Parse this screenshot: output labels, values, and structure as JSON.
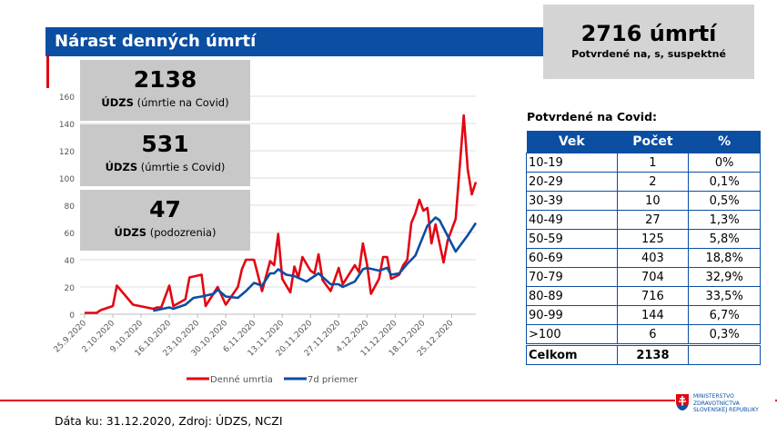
{
  "header": {
    "title": "Nárast denných úmrtí"
  },
  "total": {
    "value": "2716 úmrtí",
    "label": "Potvrdené na, s, suspektné"
  },
  "boxes": [
    {
      "value": "2138",
      "label_bold": "ÚDZS",
      "label": " (úmrtie na Covid)"
    },
    {
      "value": "531",
      "label_bold": "ÚDZS",
      "label": " (úmrtie s Covid)"
    },
    {
      "value": "47",
      "label_bold": "ÚDZS",
      "label": " (podozrenia)"
    }
  ],
  "table": {
    "title": "Potvrdené na Covid:",
    "headers": [
      "Vek",
      "Počet",
      "%"
    ],
    "rows": [
      [
        "10-19",
        "1",
        "0%"
      ],
      [
        "20-29",
        "2",
        "0,1%"
      ],
      [
        "30-39",
        "10",
        "0,5%"
      ],
      [
        "40-49",
        "27",
        "1,3%"
      ],
      [
        "50-59",
        "125",
        "5,8%"
      ],
      [
        "60-69",
        "403",
        "18,8%"
      ],
      [
        "70-79",
        "704",
        "32,9%"
      ],
      [
        "80-89",
        "716",
        "33,5%"
      ],
      [
        "90-99",
        "144",
        "6,7%"
      ],
      [
        ">100",
        "6",
        "0,3%"
      ]
    ],
    "total": [
      "Celkom",
      "2138",
      ""
    ]
  },
  "footer": {
    "source": "Dáta ku: 31.12.2020, Zdroj: ÚDZS, NCZI",
    "logo": [
      "MINISTERSTVO",
      "ZDRAVOTNÍCTVA",
      "SLOVENSKEJ REPUBLIKY"
    ]
  },
  "chart_data": {
    "type": "line",
    "x_unit": "days since 25.9.2020",
    "xlim": [
      0,
      97
    ],
    "ylim": [
      0,
      160
    ],
    "yticks": [
      0,
      20,
      40,
      60,
      80,
      100,
      120,
      140,
      160
    ],
    "xtick_labels": [
      "25.9.2020",
      "2.10.2020",
      "9.10.2020",
      "16.10.2020",
      "23.10.2020",
      "30.10.2020",
      "6.11.2020",
      "13.11.2020",
      "20.11.2020",
      "27.11.2020",
      "4.12.2020",
      "11.12.2020",
      "18.12.2020",
      "25.12.2020"
    ],
    "legend": "bottom",
    "grid": true,
    "series": [
      {
        "name": "Denné umrtia",
        "color": "#e30613",
        "points": [
          [
            0,
            1
          ],
          [
            3,
            1
          ],
          [
            4,
            3
          ],
          [
            7,
            6
          ],
          [
            8,
            21
          ],
          [
            12,
            7
          ],
          [
            17,
            4
          ],
          [
            18,
            5
          ],
          [
            19,
            5
          ],
          [
            21,
            21
          ],
          [
            22,
            6
          ],
          [
            25,
            11
          ],
          [
            26,
            27
          ],
          [
            29,
            29
          ],
          [
            30,
            6
          ],
          [
            33,
            20
          ],
          [
            35,
            7
          ],
          [
            38,
            20
          ],
          [
            39,
            33
          ],
          [
            40,
            40
          ],
          [
            42,
            40
          ],
          [
            44,
            17
          ],
          [
            46,
            39
          ],
          [
            47,
            36
          ],
          [
            48,
            59
          ],
          [
            49,
            26
          ],
          [
            51,
            16
          ],
          [
            52,
            35
          ],
          [
            53,
            27
          ],
          [
            54,
            42
          ],
          [
            56,
            32
          ],
          [
            57,
            30
          ],
          [
            58,
            44
          ],
          [
            59,
            25
          ],
          [
            61,
            17
          ],
          [
            63,
            34
          ],
          [
            64,
            22
          ],
          [
            67,
            36
          ],
          [
            68,
            31
          ],
          [
            69,
            52
          ],
          [
            70,
            37
          ],
          [
            71,
            15
          ],
          [
            73,
            26
          ],
          [
            74,
            42
          ],
          [
            75,
            42
          ],
          [
            76,
            26
          ],
          [
            78,
            29
          ],
          [
            79,
            36
          ],
          [
            80,
            40
          ],
          [
            81,
            67
          ],
          [
            82,
            74
          ],
          [
            83,
            84
          ],
          [
            84,
            76
          ],
          [
            85,
            78
          ],
          [
            86,
            52
          ],
          [
            87,
            66
          ],
          [
            89,
            38
          ],
          [
            90,
            54
          ],
          [
            92,
            70
          ],
          [
            94,
            146
          ],
          [
            95,
            106
          ],
          [
            96,
            88
          ],
          [
            97,
            97
          ]
        ]
      },
      {
        "name": "7d priemer",
        "color": "#0b4ea2",
        "points": [
          [
            17,
            2.5
          ],
          [
            21,
            5
          ],
          [
            22,
            4
          ],
          [
            25,
            7
          ],
          [
            27,
            12
          ],
          [
            29,
            13
          ],
          [
            32,
            15
          ],
          [
            33,
            18
          ],
          [
            35,
            13
          ],
          [
            38,
            12
          ],
          [
            40,
            17
          ],
          [
            42,
            23
          ],
          [
            44,
            21
          ],
          [
            46,
            30
          ],
          [
            47,
            30
          ],
          [
            48,
            33
          ],
          [
            50,
            29
          ],
          [
            52,
            28
          ],
          [
            55,
            24
          ],
          [
            56,
            26
          ],
          [
            58,
            30
          ],
          [
            61,
            22
          ],
          [
            63,
            22
          ],
          [
            64,
            20
          ],
          [
            67,
            24
          ],
          [
            69,
            33
          ],
          [
            70,
            34
          ],
          [
            73,
            32
          ],
          [
            75,
            34
          ],
          [
            76,
            29
          ],
          [
            78,
            30
          ],
          [
            80,
            37
          ],
          [
            82,
            43
          ],
          [
            85,
            65
          ],
          [
            87,
            71
          ],
          [
            88,
            69
          ],
          [
            92,
            46
          ],
          [
            95,
            58
          ],
          [
            97,
            67
          ]
        ]
      }
    ]
  }
}
